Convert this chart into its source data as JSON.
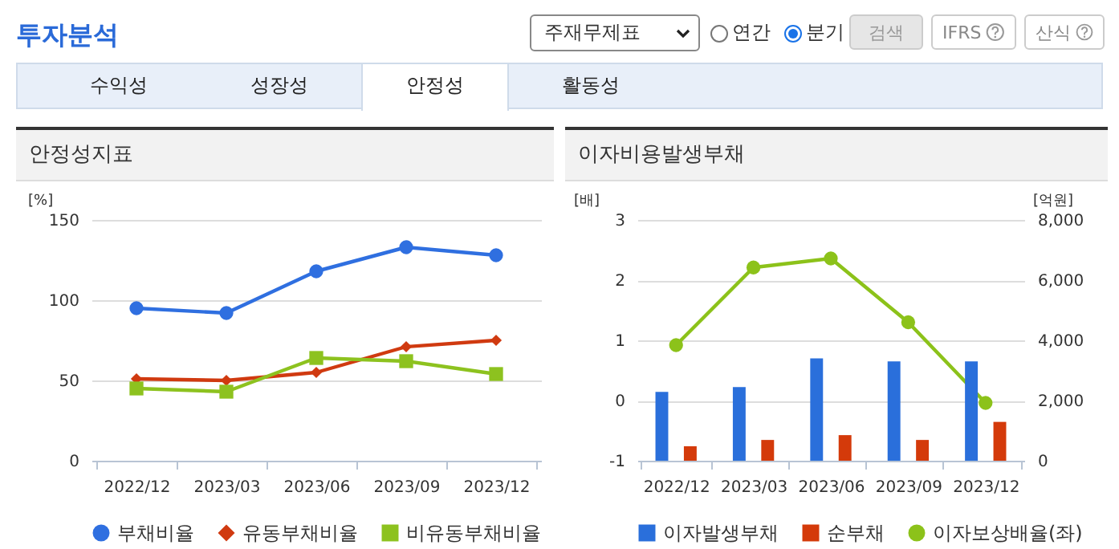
{
  "chart_data": [
    {
      "type": "other",
      "title": "투자분석",
      "annotations": [
        "주재무제표",
        "연간",
        "분기",
        "검색",
        "IFRS",
        "산식",
        "수익성",
        "성장성",
        "안정성",
        "활동성"
      ]
    },
    {
      "type": "line",
      "title": "안정성지표",
      "ylabel": "[%]",
      "categories": [
        "2022/12",
        "2023/03",
        "2023/06",
        "2023/09",
        "2023/12"
      ],
      "series": [
        {
          "name": "부채비율",
          "color": "#2f6fe0",
          "marker": "circle",
          "values": [
            95,
            92,
            118,
            133,
            128
          ]
        },
        {
          "name": "유동부채비율",
          "color": "#d03a10",
          "marker": "diamond",
          "values": [
            51,
            50,
            55,
            71,
            75
          ]
        },
        {
          "name": "비유동부채비율",
          "color": "#8dc21f",
          "marker": "square",
          "values": [
            45,
            43,
            64,
            62,
            54
          ]
        }
      ],
      "ylim": [
        0,
        150
      ],
      "yticks": [
        0,
        50,
        100,
        150
      ],
      "grid": "y",
      "legend": "bottom"
    },
    {
      "type": "bar",
      "title": "이자비용발생부채",
      "ylabel": "[배]",
      "y2label": "[억원]",
      "categories": [
        "2022/12",
        "2023/03",
        "2023/06",
        "2023/09",
        "2023/12"
      ],
      "series": [
        {
          "name": "이자발생부채",
          "color": "#2a6fdb",
          "type": "bar",
          "axis": "y2",
          "values": [
            2290,
            2450,
            3400,
            3300,
            3300
          ]
        },
        {
          "name": "순부채",
          "color": "#d43a0a",
          "type": "bar",
          "axis": "y2",
          "values": [
            480,
            690,
            850,
            690,
            1290
          ]
        },
        {
          "name": "이자보상배율(좌)",
          "color": "#8cc21a",
          "type": "line",
          "axis": "y",
          "marker": "circle",
          "values": [
            0.92,
            2.21,
            2.36,
            1.3,
            -0.04
          ]
        }
      ],
      "ylim": [
        -1,
        3
      ],
      "yticks": [
        -1,
        0,
        1,
        2,
        3
      ],
      "y2lim": [
        0,
        8000
      ],
      "y2ticks": [
        0,
        {
          "value": 2000,
          "label": "2,000"
        },
        {
          "value": 4000,
          "label": "4,000"
        },
        {
          "value": 6000,
          "label": "6,000"
        },
        {
          "value": 8000,
          "label": "8,000"
        }
      ],
      "grid": "y",
      "legend": "bottom"
    }
  ]
}
